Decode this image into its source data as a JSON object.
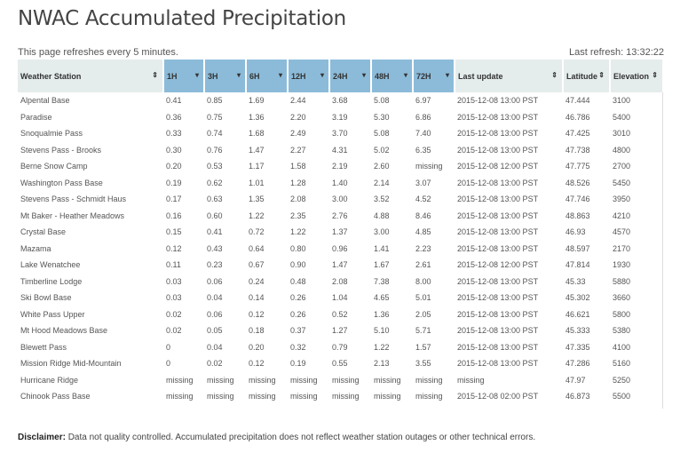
{
  "title": "NWAC Accumulated Precipitation",
  "refresh_note": "This page refreshes every 5 minutes.",
  "last_refresh": "Last refresh: 13:32:22",
  "columns": [
    "Weather Station",
    "1H",
    "3H",
    "6H",
    "12H",
    "24H",
    "48H",
    "72H",
    "Last update",
    "Latitude",
    "Elevation"
  ],
  "rows": [
    [
      "Alpental Base",
      "0.41",
      "0.85",
      "1.69",
      "2.44",
      "3.68",
      "5.08",
      "6.97",
      "2015-12-08 13:00 PST",
      "47.444",
      "3100"
    ],
    [
      "Paradise",
      "0.36",
      "0.75",
      "1.36",
      "2.20",
      "3.19",
      "5.30",
      "6.86",
      "2015-12-08 13:00 PST",
      "46.786",
      "5400"
    ],
    [
      "Snoqualmie Pass",
      "0.33",
      "0.74",
      "1.68",
      "2.49",
      "3.70",
      "5.08",
      "7.40",
      "2015-12-08 13:00 PST",
      "47.425",
      "3010"
    ],
    [
      "Stevens Pass - Brooks",
      "0.30",
      "0.76",
      "1.47",
      "2.27",
      "4.31",
      "5.02",
      "6.35",
      "2015-12-08 13:00 PST",
      "47.738",
      "4800"
    ],
    [
      "Berne Snow Camp",
      "0.20",
      "0.53",
      "1.17",
      "1.58",
      "2.19",
      "2.60",
      "missing",
      "2015-12-08 12:00 PST",
      "47.775",
      "2700"
    ],
    [
      "Washington Pass Base",
      "0.19",
      "0.62",
      "1.01",
      "1.28",
      "1.40",
      "2.14",
      "3.07",
      "2015-12-08 13:00 PST",
      "48.526",
      "5450"
    ],
    [
      "Stevens Pass - Schmidt Haus",
      "0.17",
      "0.63",
      "1.35",
      "2.08",
      "3.00",
      "3.52",
      "4.52",
      "2015-12-08 13:00 PST",
      "47.746",
      "3950"
    ],
    [
      "Mt Baker - Heather Meadows",
      "0.16",
      "0.60",
      "1.22",
      "2.35",
      "2.76",
      "4.88",
      "8.46",
      "2015-12-08 13:00 PST",
      "48.863",
      "4210"
    ],
    [
      "Crystal Base",
      "0.15",
      "0.41",
      "0.72",
      "1.22",
      "1.37",
      "3.00",
      "4.85",
      "2015-12-08 13:00 PST",
      "46.93",
      "4570"
    ],
    [
      "Mazama",
      "0.12",
      "0.43",
      "0.64",
      "0.80",
      "0.96",
      "1.41",
      "2.23",
      "2015-12-08 13:00 PST",
      "48.597",
      "2170"
    ],
    [
      "Lake Wenatchee",
      "0.11",
      "0.23",
      "0.67",
      "0.90",
      "1.47",
      "1.67",
      "2.61",
      "2015-12-08 12:00 PST",
      "47.814",
      "1930"
    ],
    [
      "Timberline Lodge",
      "0.03",
      "0.06",
      "0.24",
      "0.48",
      "2.08",
      "7.38",
      "8.00",
      "2015-12-08 13:00 PST",
      "45.33",
      "5880"
    ],
    [
      "Ski Bowl Base",
      "0.03",
      "0.04",
      "0.14",
      "0.26",
      "1.04",
      "4.65",
      "5.01",
      "2015-12-08 13:00 PST",
      "45.302",
      "3660"
    ],
    [
      "White Pass Upper",
      "0.02",
      "0.06",
      "0.12",
      "0.26",
      "0.52",
      "1.36",
      "2.05",
      "2015-12-08 13:00 PST",
      "46.621",
      "5800"
    ],
    [
      "Mt Hood Meadows Base",
      "0.02",
      "0.05",
      "0.18",
      "0.37",
      "1.27",
      "5.10",
      "5.71",
      "2015-12-08 13:00 PST",
      "45.333",
      "5380"
    ],
    [
      "Blewett Pass",
      "0",
      "0.04",
      "0.20",
      "0.32",
      "0.79",
      "1.22",
      "1.57",
      "2015-12-08 13:00 PST",
      "47.335",
      "4100"
    ],
    [
      "Mission Ridge Mid-Mountain",
      "0",
      "0.02",
      "0.12",
      "0.19",
      "0.55",
      "2.13",
      "3.55",
      "2015-12-08 13:00 PST",
      "47.286",
      "5160"
    ],
    [
      "Hurricane Ridge",
      "missing",
      "missing",
      "missing",
      "missing",
      "missing",
      "missing",
      "missing",
      "missing",
      "47.97",
      "5250"
    ],
    [
      "Chinook Pass Base",
      "missing",
      "missing",
      "missing",
      "missing",
      "missing",
      "missing",
      "missing",
      "2015-12-08 02:00 PST",
      "46.873",
      "5500"
    ]
  ],
  "disclaimer_label": "Disclaimer:",
  "disclaimer_text": " Data not quality controlled. Accumulated precipitation does not reflect weather station outages or other technical errors."
}
